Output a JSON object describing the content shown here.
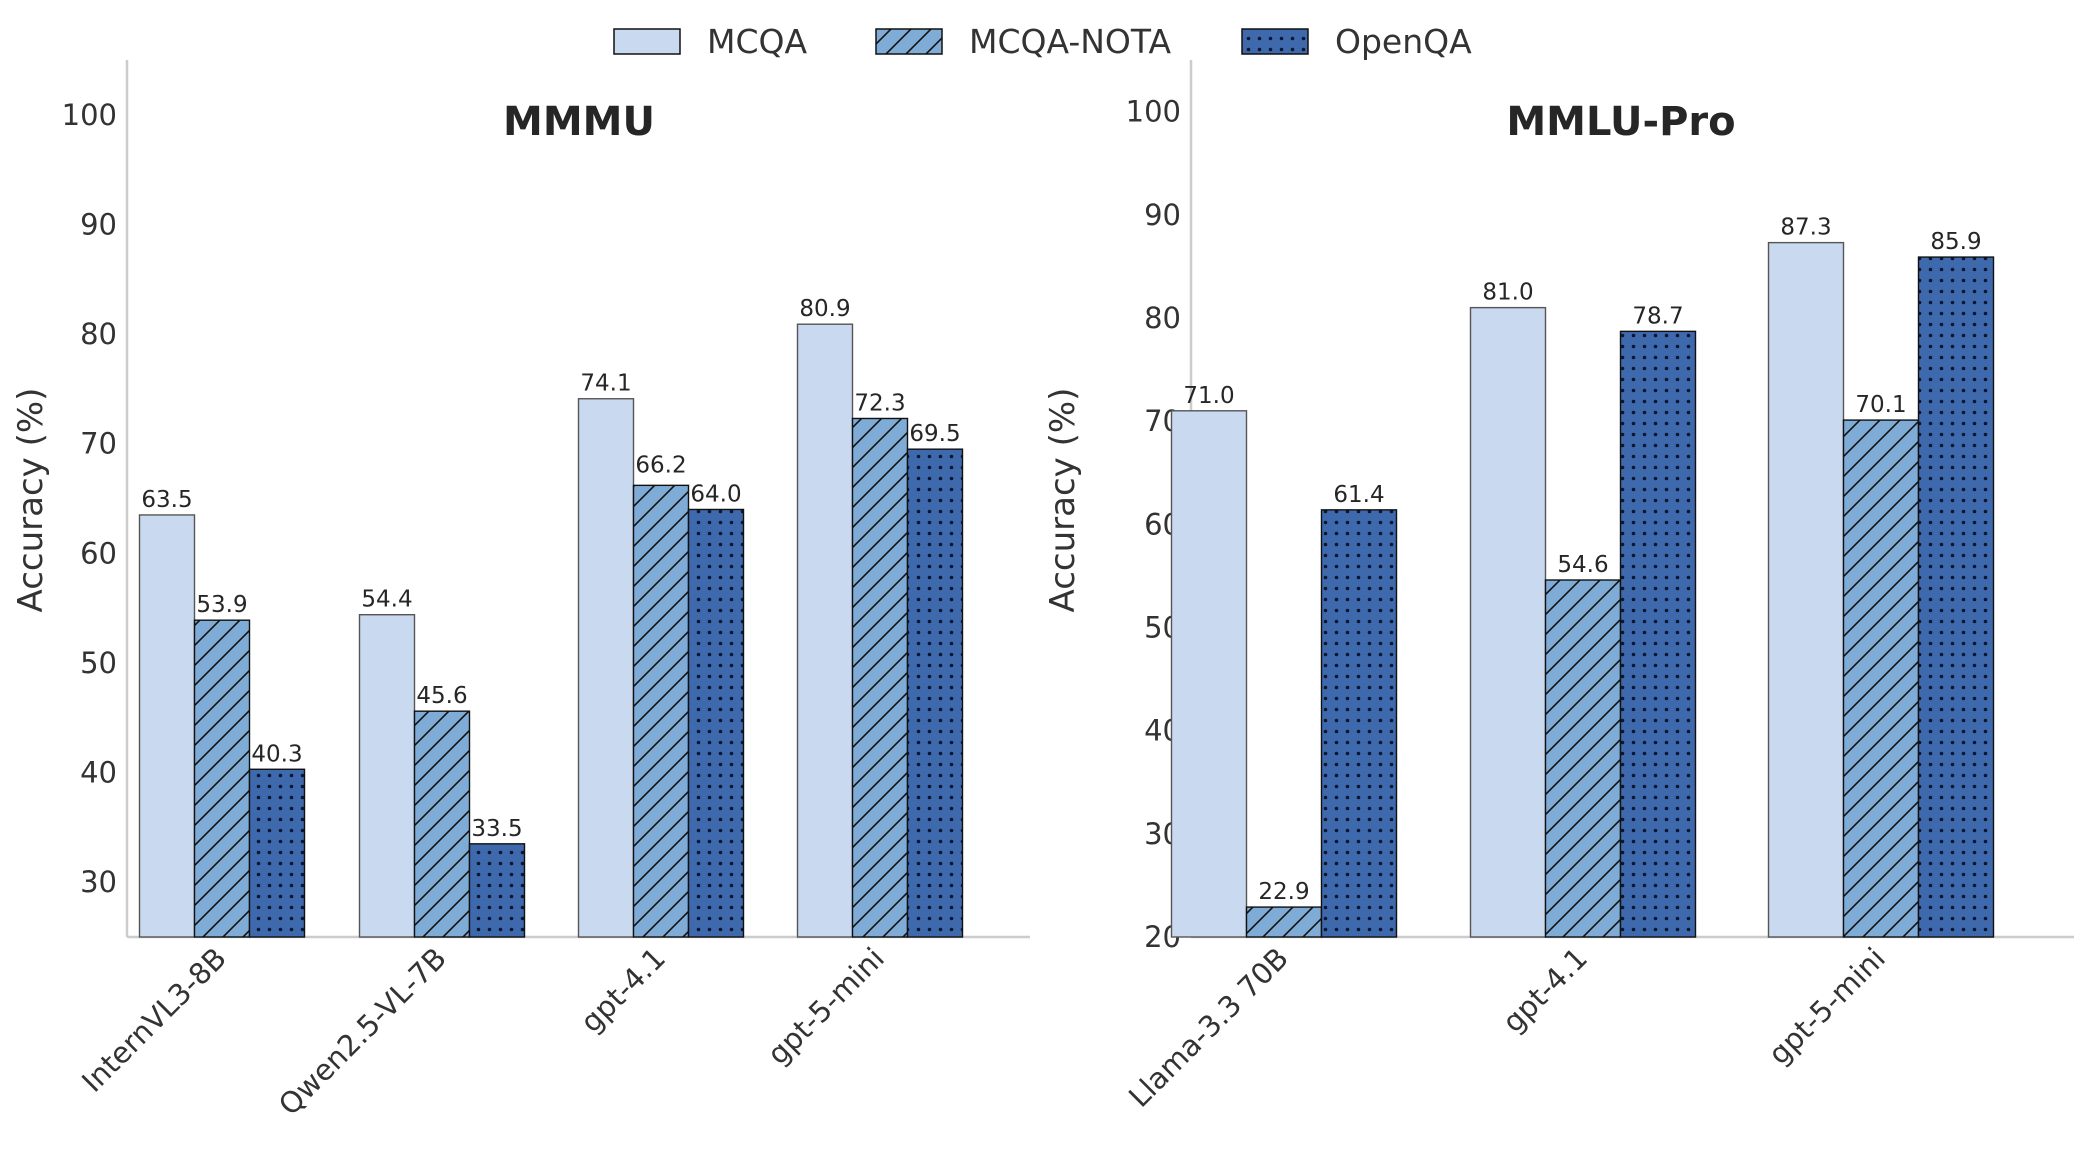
{
  "chart_data": [
    {
      "type": "bar",
      "title": "MMMU",
      "ylabel": "Accuracy (%)",
      "xlabel": "",
      "ylim": [
        25,
        105
      ],
      "yticks": [
        30,
        40,
        50,
        60,
        70,
        80,
        90,
        100
      ],
      "grid": false,
      "categories": [
        "InternVL3-8B",
        "Qwen2.5-VL-7B",
        "gpt-4.1",
        "gpt-5-mini"
      ],
      "series": [
        {
          "name": "MCQA",
          "values": [
            63.5,
            54.4,
            74.1,
            80.9
          ]
        },
        {
          "name": "MCQA-NOTA",
          "values": [
            53.9,
            45.6,
            66.2,
            72.3
          ]
        },
        {
          "name": "OpenQA",
          "values": [
            40.3,
            33.5,
            64.0,
            69.5
          ]
        }
      ]
    },
    {
      "type": "bar",
      "title": "MMLU-Pro",
      "ylabel": "Accuracy (%)",
      "xlabel": "",
      "ylim": [
        20,
        105
      ],
      "yticks": [
        20,
        30,
        40,
        50,
        60,
        70,
        80,
        90,
        100
      ],
      "grid": false,
      "categories": [
        "Llama-3.3 70B",
        "gpt-4.1",
        "gpt-5-mini"
      ],
      "series": [
        {
          "name": "MCQA",
          "values": [
            71.0,
            81.0,
            87.3
          ]
        },
        {
          "name": "MCQA-NOTA",
          "values": [
            22.9,
            54.6,
            70.1
          ]
        },
        {
          "name": "OpenQA",
          "values": [
            61.4,
            78.7,
            85.9
          ]
        }
      ]
    }
  ],
  "legend": {
    "placement": "top-center",
    "items": [
      {
        "label": "MCQA",
        "color": "#c9d9ef",
        "pattern": "none"
      },
      {
        "label": "MCQA-NOTA",
        "color": "#7eacd6",
        "pattern": "hatch"
      },
      {
        "label": "OpenQA",
        "color": "#3f69ad",
        "pattern": "dots"
      }
    ]
  }
}
